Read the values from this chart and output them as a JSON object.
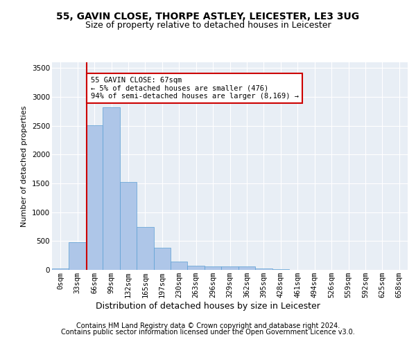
{
  "title1": "55, GAVIN CLOSE, THORPE ASTLEY, LEICESTER, LE3 3UG",
  "title2": "Size of property relative to detached houses in Leicester",
  "xlabel": "Distribution of detached houses by size in Leicester",
  "ylabel": "Number of detached properties",
  "footer1": "Contains HM Land Registry data © Crown copyright and database right 2024.",
  "footer2": "Contains public sector information licensed under the Open Government Licence v3.0.",
  "annotation_title": "55 GAVIN CLOSE: 67sqm",
  "annotation_line1": "← 5% of detached houses are smaller (476)",
  "annotation_line2": "94% of semi-detached houses are larger (8,169) →",
  "bar_color": "#aec6e8",
  "bar_edge_color": "#5a9fd4",
  "vline_color": "#cc0000",
  "bin_labels": [
    "0sqm",
    "33sqm",
    "66sqm",
    "99sqm",
    "132sqm",
    "165sqm",
    "197sqm",
    "230sqm",
    "263sqm",
    "296sqm",
    "329sqm",
    "362sqm",
    "395sqm",
    "428sqm",
    "461sqm",
    "494sqm",
    "526sqm",
    "559sqm",
    "592sqm",
    "625sqm",
    "658sqm"
  ],
  "bar_values": [
    20,
    480,
    2510,
    2820,
    1520,
    750,
    390,
    145,
    75,
    55,
    55,
    60,
    30,
    15,
    5,
    3,
    2,
    1,
    1,
    0,
    0
  ],
  "ylim": [
    0,
    3600
  ],
  "yticks": [
    0,
    500,
    1000,
    1500,
    2000,
    2500,
    3000,
    3500
  ],
  "annotation_box_color": "#ffffff",
  "annotation_box_edge": "#cc0000",
  "bg_color": "#e8eef5",
  "grid_color": "#ffffff",
  "title1_fontsize": 10,
  "title2_fontsize": 9,
  "xlabel_fontsize": 9,
  "ylabel_fontsize": 8,
  "tick_fontsize": 7.5,
  "footer_fontsize": 7,
  "annotation_fontsize": 7.5
}
